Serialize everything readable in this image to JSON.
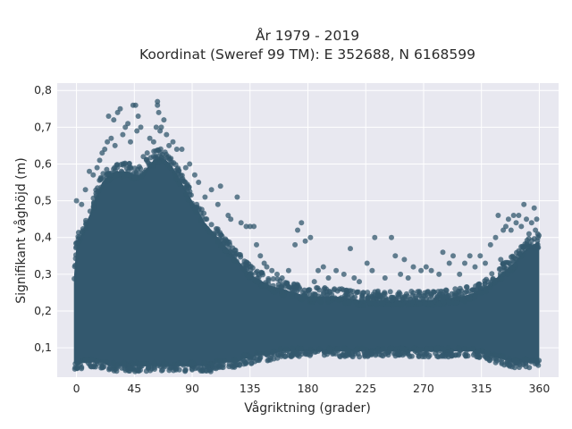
{
  "chart_data": {
    "type": "scatter",
    "title": "År 1979 - 2019",
    "subtitle": "Koordinat (Sweref 99 TM): E 352688, N 6168599",
    "xlabel": "Vågriktning (grader)",
    "ylabel": "Signifikant våghöjd (m)",
    "xlim": [
      -15,
      375
    ],
    "ylim": [
      0.02,
      0.82
    ],
    "x_ticks": [
      0,
      45,
      90,
      135,
      180,
      225,
      270,
      315,
      360
    ],
    "x_tick_labels": [
      "0",
      "45",
      "90",
      "135",
      "180",
      "225",
      "270",
      "315",
      "360"
    ],
    "y_ticks": [
      0.1,
      0.2,
      0.3,
      0.4,
      0.5,
      0.6,
      0.7,
      0.8
    ],
    "y_tick_labels": [
      "0,1",
      "0,2",
      "0,3",
      "0,4",
      "0,5",
      "0,6",
      "0,7",
      "0,8"
    ],
    "grid": true,
    "legend": "none",
    "colors": {
      "marker": "#33586e",
      "plot_background": "#e8e8f0",
      "grid": "#ffffff"
    },
    "series": [
      {
        "marker": "circle",
        "dense_band": {
          "x": [
            -2,
            0,
            5,
            10,
            15,
            20,
            25,
            30,
            35,
            40,
            45,
            50,
            55,
            60,
            65,
            70,
            75,
            80,
            85,
            90,
            95,
            100,
            105,
            110,
            115,
            120,
            125,
            130,
            135,
            140,
            145,
            150,
            160,
            170,
            180,
            200,
            220,
            240,
            260,
            280,
            300,
            310,
            320,
            330,
            340,
            345,
            350,
            355,
            360
          ],
          "y_low": [
            0.06,
            0.05,
            0.06,
            0.06,
            0.06,
            0.06,
            0.05,
            0.05,
            0.05,
            0.05,
            0.05,
            0.05,
            0.05,
            0.05,
            0.05,
            0.05,
            0.05,
            0.05,
            0.05,
            0.05,
            0.05,
            0.05,
            0.05,
            0.06,
            0.06,
            0.06,
            0.06,
            0.07,
            0.07,
            0.08,
            0.08,
            0.08,
            0.09,
            0.09,
            0.09,
            0.09,
            0.09,
            0.09,
            0.09,
            0.09,
            0.09,
            0.09,
            0.08,
            0.07,
            0.06,
            0.06,
            0.06,
            0.06,
            0.06
          ],
          "y_high": [
            0.29,
            0.38,
            0.42,
            0.46,
            0.51,
            0.55,
            0.57,
            0.58,
            0.58,
            0.58,
            0.57,
            0.57,
            0.59,
            0.61,
            0.62,
            0.61,
            0.59,
            0.56,
            0.53,
            0.5,
            0.47,
            0.44,
            0.42,
            0.4,
            0.38,
            0.36,
            0.34,
            0.32,
            0.3,
            0.29,
            0.28,
            0.27,
            0.26,
            0.25,
            0.24,
            0.24,
            0.23,
            0.23,
            0.23,
            0.23,
            0.24,
            0.25,
            0.27,
            0.3,
            0.33,
            0.35,
            0.37,
            0.38,
            0.39
          ]
        },
        "outliers": [
          {
            "x": 0,
            "y": 0.5
          },
          {
            "x": 4,
            "y": 0.49
          },
          {
            "x": 7,
            "y": 0.53
          },
          {
            "x": 10,
            "y": 0.58
          },
          {
            "x": 13,
            "y": 0.57
          },
          {
            "x": 16,
            "y": 0.59
          },
          {
            "x": 18,
            "y": 0.61
          },
          {
            "x": 20,
            "y": 0.63
          },
          {
            "x": 22,
            "y": 0.64
          },
          {
            "x": 24,
            "y": 0.66
          },
          {
            "x": 25,
            "y": 0.73
          },
          {
            "x": 27,
            "y": 0.67
          },
          {
            "x": 29,
            "y": 0.72
          },
          {
            "x": 30,
            "y": 0.65
          },
          {
            "x": 32,
            "y": 0.74
          },
          {
            "x": 34,
            "y": 0.75
          },
          {
            "x": 36,
            "y": 0.68
          },
          {
            "x": 38,
            "y": 0.7
          },
          {
            "x": 40,
            "y": 0.71
          },
          {
            "x": 42,
            "y": 0.66
          },
          {
            "x": 44,
            "y": 0.76
          },
          {
            "x": 46,
            "y": 0.76
          },
          {
            "x": 47,
            "y": 0.69
          },
          {
            "x": 48,
            "y": 0.73
          },
          {
            "x": 50,
            "y": 0.7
          },
          {
            "x": 52,
            "y": 0.62
          },
          {
            "x": 55,
            "y": 0.63
          },
          {
            "x": 57,
            "y": 0.67
          },
          {
            "x": 60,
            "y": 0.66
          },
          {
            "x": 62,
            "y": 0.7
          },
          {
            "x": 63,
            "y": 0.77
          },
          {
            "x": 63,
            "y": 0.76
          },
          {
            "x": 64,
            "y": 0.74
          },
          {
            "x": 65,
            "y": 0.69
          },
          {
            "x": 66,
            "y": 0.7
          },
          {
            "x": 68,
            "y": 0.72
          },
          {
            "x": 70,
            "y": 0.68
          },
          {
            "x": 72,
            "y": 0.65
          },
          {
            "x": 75,
            "y": 0.66
          },
          {
            "x": 78,
            "y": 0.64
          },
          {
            "x": 82,
            "y": 0.64
          },
          {
            "x": 85,
            "y": 0.59
          },
          {
            "x": 88,
            "y": 0.6
          },
          {
            "x": 92,
            "y": 0.57
          },
          {
            "x": 95,
            "y": 0.55
          },
          {
            "x": 100,
            "y": 0.51
          },
          {
            "x": 105,
            "y": 0.53
          },
          {
            "x": 110,
            "y": 0.49
          },
          {
            "x": 112,
            "y": 0.54
          },
          {
            "x": 118,
            "y": 0.46
          },
          {
            "x": 120,
            "y": 0.45
          },
          {
            "x": 125,
            "y": 0.51
          },
          {
            "x": 128,
            "y": 0.44
          },
          {
            "x": 132,
            "y": 0.43
          },
          {
            "x": 135,
            "y": 0.43
          },
          {
            "x": 138,
            "y": 0.43
          },
          {
            "x": 140,
            "y": 0.38
          },
          {
            "x": 143,
            "y": 0.35
          },
          {
            "x": 146,
            "y": 0.33
          },
          {
            "x": 148,
            "y": 0.32
          },
          {
            "x": 152,
            "y": 0.31
          },
          {
            "x": 156,
            "y": 0.3
          },
          {
            "x": 160,
            "y": 0.29
          },
          {
            "x": 165,
            "y": 0.31
          },
          {
            "x": 170,
            "y": 0.38
          },
          {
            "x": 172,
            "y": 0.42
          },
          {
            "x": 175,
            "y": 0.44
          },
          {
            "x": 178,
            "y": 0.39
          },
          {
            "x": 182,
            "y": 0.4
          },
          {
            "x": 185,
            "y": 0.28
          },
          {
            "x": 188,
            "y": 0.31
          },
          {
            "x": 192,
            "y": 0.32
          },
          {
            "x": 196,
            "y": 0.29
          },
          {
            "x": 202,
            "y": 0.31
          },
          {
            "x": 208,
            "y": 0.3
          },
          {
            "x": 213,
            "y": 0.37
          },
          {
            "x": 216,
            "y": 0.29
          },
          {
            "x": 220,
            "y": 0.28
          },
          {
            "x": 226,
            "y": 0.33
          },
          {
            "x": 230,
            "y": 0.31
          },
          {
            "x": 232,
            "y": 0.4
          },
          {
            "x": 240,
            "y": 0.29
          },
          {
            "x": 245,
            "y": 0.4
          },
          {
            "x": 248,
            "y": 0.35
          },
          {
            "x": 252,
            "y": 0.3
          },
          {
            "x": 255,
            "y": 0.34
          },
          {
            "x": 258,
            "y": 0.29
          },
          {
            "x": 262,
            "y": 0.32
          },
          {
            "x": 268,
            "y": 0.31
          },
          {
            "x": 272,
            "y": 0.32
          },
          {
            "x": 276,
            "y": 0.31
          },
          {
            "x": 282,
            "y": 0.3
          },
          {
            "x": 285,
            "y": 0.36
          },
          {
            "x": 290,
            "y": 0.33
          },
          {
            "x": 293,
            "y": 0.35
          },
          {
            "x": 298,
            "y": 0.3
          },
          {
            "x": 302,
            "y": 0.33
          },
          {
            "x": 306,
            "y": 0.35
          },
          {
            "x": 310,
            "y": 0.32
          },
          {
            "x": 314,
            "y": 0.35
          },
          {
            "x": 318,
            "y": 0.33
          },
          {
            "x": 322,
            "y": 0.38
          },
          {
            "x": 326,
            "y": 0.4
          },
          {
            "x": 328,
            "y": 0.46
          },
          {
            "x": 330,
            "y": 0.34
          },
          {
            "x": 332,
            "y": 0.42
          },
          {
            "x": 334,
            "y": 0.43
          },
          {
            "x": 336,
            "y": 0.45
          },
          {
            "x": 338,
            "y": 0.42
          },
          {
            "x": 340,
            "y": 0.46
          },
          {
            "x": 342,
            "y": 0.44
          },
          {
            "x": 344,
            "y": 0.46
          },
          {
            "x": 346,
            "y": 0.43
          },
          {
            "x": 348,
            "y": 0.49
          },
          {
            "x": 350,
            "y": 0.45
          },
          {
            "x": 352,
            "y": 0.41
          },
          {
            "x": 354,
            "y": 0.44
          },
          {
            "x": 356,
            "y": 0.48
          },
          {
            "x": 357,
            "y": 0.42
          },
          {
            "x": 358,
            "y": 0.45
          },
          {
            "x": 359,
            "y": 0.4
          },
          {
            "x": 90,
            "y": 0.04
          },
          {
            "x": 85,
            "y": 0.04
          },
          {
            "x": 80,
            "y": 0.04
          }
        ]
      }
    ]
  }
}
